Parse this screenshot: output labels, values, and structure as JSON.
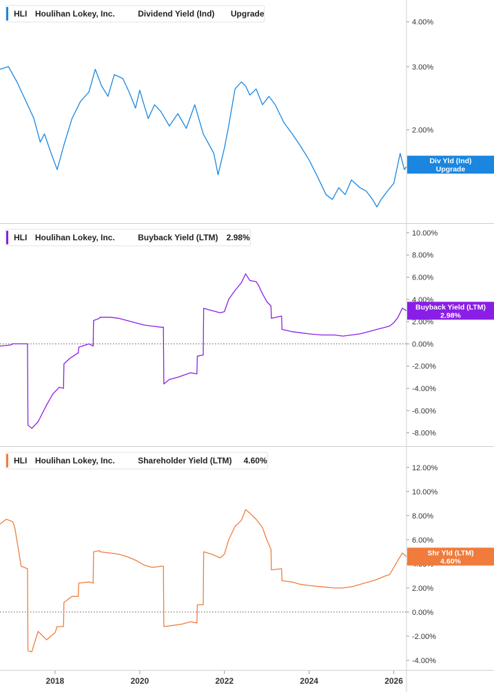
{
  "chart_data": [
    {
      "type": "line",
      "legend": {
        "ticker": "HLI",
        "company": "Houlihan Lokey, Inc.",
        "metric": "Dividend Yield (Ind)",
        "value": "Upgrade"
      },
      "badge": {
        "line1": "Div Yld (Ind)",
        "line2": "Upgrade"
      },
      "color": "#1a86e0",
      "scale": "log",
      "ylim": [
        1.1,
        4.6
      ],
      "yticks": [
        {
          "value": 2,
          "label": "2.00%"
        },
        {
          "value": 3,
          "label": "3.00%"
        },
        {
          "value": 4,
          "label": "4.00%"
        }
      ],
      "zero_line": false,
      "badge_value": 1.6,
      "series": [
        {
          "x": [
            2016.7,
            2016.9,
            2017.1,
            2017.3,
            2017.5,
            2017.65,
            2017.75,
            2017.9,
            2018.05,
            2018.2,
            2018.4,
            2018.6,
            2018.8,
            2018.95,
            2019.1,
            2019.25,
            2019.4,
            2019.6,
            2019.75,
            2019.9,
            2020.0,
            2020.1,
            2020.2,
            2020.35,
            2020.5,
            2020.7,
            2020.9,
            2021.1,
            2021.3,
            2021.5,
            2021.75,
            2021.85,
            2022.0,
            2022.1,
            2022.25,
            2022.4,
            2022.5,
            2022.6,
            2022.75,
            2022.9,
            2023.05,
            2023.2,
            2023.4,
            2023.6,
            2023.8,
            2024.0,
            2024.2,
            2024.4,
            2024.55,
            2024.7,
            2024.85,
            2025.0,
            2025.2,
            2025.35,
            2025.5,
            2025.6,
            2025.7,
            2025.85,
            2026.0,
            2026.15,
            2026.25,
            2026.3
          ],
          "y": [
            2.95,
            3.0,
            2.72,
            2.42,
            2.15,
            1.85,
            1.95,
            1.73,
            1.55,
            1.8,
            2.15,
            2.4,
            2.55,
            2.95,
            2.65,
            2.48,
            2.85,
            2.78,
            2.55,
            2.3,
            2.58,
            2.35,
            2.15,
            2.35,
            2.25,
            2.05,
            2.22,
            2.02,
            2.35,
            1.95,
            1.72,
            1.5,
            1.78,
            2.05,
            2.6,
            2.72,
            2.65,
            2.5,
            2.6,
            2.35,
            2.48,
            2.35,
            2.1,
            1.95,
            1.8,
            1.65,
            1.48,
            1.32,
            1.28,
            1.38,
            1.32,
            1.45,
            1.38,
            1.35,
            1.28,
            1.22,
            1.28,
            1.35,
            1.42,
            1.72,
            1.55,
            1.58
          ]
        }
      ]
    },
    {
      "type": "line",
      "legend": {
        "ticker": "HLI",
        "company": "Houlihan Lokey, Inc.",
        "metric": "Buyback Yield (LTM)",
        "value": "2.98%"
      },
      "badge": {
        "line1": "Buyback Yield (LTM)",
        "line2": "2.98%"
      },
      "color": "#8a1ee6",
      "scale": "linear",
      "ylim": [
        -9.2,
        10.8
      ],
      "yticks": [
        {
          "value": 10,
          "label": "10.00%"
        },
        {
          "value": 8,
          "label": "8.00%"
        },
        {
          "value": 6,
          "label": "6.00%"
        },
        {
          "value": 4,
          "label": "4.00%"
        },
        {
          "value": 2,
          "label": "2.00%"
        },
        {
          "value": 0,
          "label": "0.00%"
        },
        {
          "value": -2,
          "label": "-2.00%"
        },
        {
          "value": -4,
          "label": "-4.00%"
        },
        {
          "value": -6,
          "label": "-6.00%"
        },
        {
          "value": -8,
          "label": "-8.00%"
        }
      ],
      "zero_line": true,
      "badge_value": 2.98,
      "series": [
        {
          "x": [
            2016.7,
            2016.95,
            2017.0,
            2017.35,
            2017.36,
            2017.45,
            2017.6,
            2017.8,
            2017.95,
            2018.1,
            2018.2,
            2018.21,
            2018.35,
            2018.55,
            2018.56,
            2018.8,
            2018.9,
            2018.91,
            2019.05,
            2019.06,
            2019.3,
            2019.5,
            2019.7,
            2019.9,
            2020.1,
            2020.3,
            2020.5,
            2020.56,
            2020.57,
            2020.7,
            2020.9,
            2021.2,
            2021.35,
            2021.36,
            2021.5,
            2021.51,
            2021.7,
            2021.9,
            2022.0,
            2022.1,
            2022.25,
            2022.4,
            2022.5,
            2022.6,
            2022.75,
            2022.8,
            2022.9,
            2023.0,
            2023.1,
            2023.11,
            2023.35,
            2023.36,
            2023.6,
            2023.8,
            2024.0,
            2024.3,
            2024.6,
            2024.8,
            2025.0,
            2025.2,
            2025.4,
            2025.6,
            2025.8,
            2025.9,
            2026.0,
            2026.1,
            2026.2,
            2026.3
          ],
          "y": [
            -0.2,
            -0.1,
            0.0,
            0.0,
            -7.3,
            -7.6,
            -7.0,
            -5.5,
            -4.5,
            -3.9,
            -4.0,
            -1.8,
            -1.3,
            -0.8,
            -0.3,
            0.0,
            -0.2,
            2.1,
            2.3,
            2.4,
            2.4,
            2.3,
            2.1,
            1.9,
            1.7,
            1.6,
            1.5,
            1.5,
            -3.6,
            -3.2,
            -3.0,
            -2.6,
            -2.7,
            -1.1,
            -1.0,
            3.2,
            3.0,
            2.8,
            2.9,
            4.0,
            4.8,
            5.5,
            6.3,
            5.7,
            5.6,
            5.3,
            4.5,
            3.8,
            3.4,
            2.3,
            2.5,
            1.3,
            1.1,
            1.0,
            0.9,
            0.8,
            0.8,
            0.7,
            0.8,
            0.9,
            1.1,
            1.3,
            1.5,
            1.6,
            1.9,
            2.4,
            3.2,
            2.98
          ]
        }
      ]
    },
    {
      "type": "line",
      "legend": {
        "ticker": "HLI",
        "company": "Houlihan Lokey, Inc.",
        "metric": "Shareholder Yield (LTM)",
        "value": "4.60%"
      },
      "badge": {
        "line1": "Shr Yld (LTM)",
        "line2": "4.60%"
      },
      "color": "#f07b3c",
      "scale": "linear",
      "ylim": [
        -4.8,
        13.7
      ],
      "yticks": [
        {
          "value": 12,
          "label": "12.00%"
        },
        {
          "value": 10,
          "label": "10.00%"
        },
        {
          "value": 8,
          "label": "8.00%"
        },
        {
          "value": 6,
          "label": "6.00%"
        },
        {
          "value": 4,
          "label": "4.00%"
        },
        {
          "value": 2,
          "label": "2.00%"
        },
        {
          "value": 0,
          "label": "0.00%"
        },
        {
          "value": -2,
          "label": "-2.00%"
        },
        {
          "value": -4,
          "label": "-4.00%"
        }
      ],
      "zero_line": true,
      "badge_value": 4.6,
      "series": [
        {
          "x": [
            2016.7,
            2016.85,
            2017.0,
            2017.05,
            2017.2,
            2017.35,
            2017.36,
            2017.45,
            2017.6,
            2017.8,
            2018.0,
            2018.05,
            2018.2,
            2018.21,
            2018.4,
            2018.55,
            2018.56,
            2018.8,
            2018.9,
            2018.91,
            2019.05,
            2019.06,
            2019.3,
            2019.5,
            2019.7,
            2019.9,
            2020.1,
            2020.3,
            2020.5,
            2020.56,
            2020.57,
            2020.8,
            2021.0,
            2021.2,
            2021.35,
            2021.36,
            2021.5,
            2021.51,
            2021.7,
            2021.9,
            2022.0,
            2022.1,
            2022.25,
            2022.4,
            2022.5,
            2022.6,
            2022.75,
            2022.9,
            2023.0,
            2023.1,
            2023.11,
            2023.35,
            2023.36,
            2023.6,
            2023.8,
            2024.0,
            2024.3,
            2024.6,
            2024.8,
            2025.0,
            2025.2,
            2025.4,
            2025.6,
            2025.8,
            2025.9,
            2026.0,
            2026.1,
            2026.2,
            2026.3
          ],
          "y": [
            7.3,
            7.7,
            7.5,
            7.0,
            3.8,
            3.6,
            -3.2,
            -3.3,
            -1.6,
            -2.3,
            -1.7,
            -1.2,
            -1.2,
            0.8,
            1.3,
            1.3,
            2.4,
            2.5,
            2.4,
            5.0,
            5.1,
            5.0,
            4.9,
            4.8,
            4.6,
            4.3,
            3.9,
            3.7,
            3.8,
            3.8,
            -1.2,
            -1.1,
            -1.0,
            -0.8,
            -0.9,
            0.6,
            0.6,
            5.0,
            4.8,
            4.5,
            4.8,
            6.0,
            7.1,
            7.6,
            8.5,
            8.2,
            7.7,
            7.0,
            6.0,
            5.2,
            3.5,
            3.6,
            2.6,
            2.5,
            2.3,
            2.2,
            2.1,
            2.0,
            2.0,
            2.1,
            2.3,
            2.5,
            2.7,
            3.0,
            3.1,
            3.7,
            4.3,
            4.9,
            4.6
          ]
        }
      ]
    }
  ],
  "x_axis": {
    "xlim": [
      2016.7,
      2026.3
    ],
    "ticks": [
      {
        "value": 2018,
        "label": "2018"
      },
      {
        "value": 2020,
        "label": "2020"
      },
      {
        "value": 2022,
        "label": "2022"
      },
      {
        "value": 2024,
        "label": "2024"
      },
      {
        "value": 2026,
        "label": "2026"
      }
    ]
  }
}
